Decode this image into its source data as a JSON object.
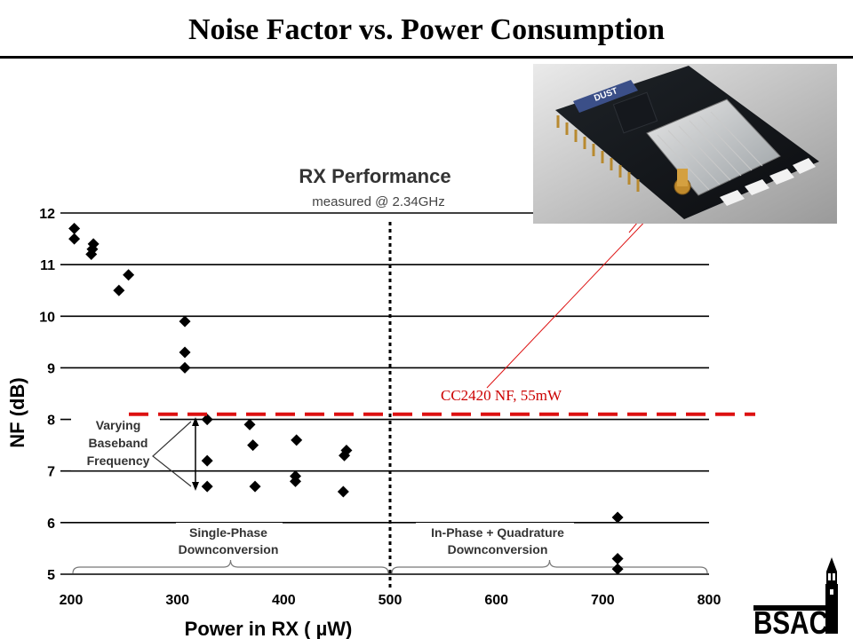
{
  "slide": {
    "title": "Noise Factor vs. Power Consumption",
    "annotation": "CC2420 NF, 55mW",
    "photo_label": "DUST",
    "logo_text": "BSAC"
  },
  "chart_data": {
    "type": "scatter",
    "title": "RX Performance",
    "subtitle": "measured @ 2.34GHz",
    "xlabel": "Power in RX ( µW)",
    "ylabel": "NF (dB)",
    "xlim": [
      200,
      800
    ],
    "ylim": [
      5,
      12
    ],
    "x_ticks": [
      200,
      300,
      400,
      500,
      600,
      700,
      800
    ],
    "y_ticks": [
      5,
      6,
      7,
      8,
      9,
      10,
      11,
      12
    ],
    "grid": "horizontal",
    "marker": "diamond",
    "points": [
      {
        "x": 203,
        "y": 11.7
      },
      {
        "x": 203,
        "y": 11.5
      },
      {
        "x": 221,
        "y": 11.4
      },
      {
        "x": 220,
        "y": 11.3
      },
      {
        "x": 219,
        "y": 11.2
      },
      {
        "x": 254,
        "y": 10.8
      },
      {
        "x": 245,
        "y": 10.5
      },
      {
        "x": 307,
        "y": 9.9
      },
      {
        "x": 307,
        "y": 9.3
      },
      {
        "x": 307,
        "y": 9.0
      },
      {
        "x": 328,
        "y": 8.0
      },
      {
        "x": 328,
        "y": 7.2
      },
      {
        "x": 328,
        "y": 6.7
      },
      {
        "x": 368,
        "y": 7.9
      },
      {
        "x": 371,
        "y": 7.5
      },
      {
        "x": 373,
        "y": 6.7
      },
      {
        "x": 412,
        "y": 7.6
      },
      {
        "x": 411,
        "y": 6.9
      },
      {
        "x": 411,
        "y": 6.8
      },
      {
        "x": 459,
        "y": 7.4
      },
      {
        "x": 457,
        "y": 7.3
      },
      {
        "x": 456,
        "y": 6.6
      },
      {
        "x": 714,
        "y": 6.1
      },
      {
        "x": 714,
        "y": 5.3
      },
      {
        "x": 714,
        "y": 5.1
      }
    ],
    "divider_x": 500,
    "reference_line": {
      "y": 8.1,
      "label": "CC2420 NF, 55mW",
      "color": "#dd1111"
    },
    "regions": [
      {
        "label_line1": "Single-Phase",
        "label_line2": "Downconversion",
        "x_from": 200,
        "x_to": 500
      },
      {
        "label_line1": "In-Phase + Quadrature",
        "label_line2": "Downconversion",
        "x_from": 500,
        "x_to": 800
      }
    ],
    "callout": {
      "line1": "Varying",
      "line2": "Baseband",
      "line3": "Frequency"
    }
  },
  "colors": {
    "marker": "#000000",
    "reference": "#dd1111",
    "annotation": "#cc0000",
    "grid": "#000000"
  }
}
